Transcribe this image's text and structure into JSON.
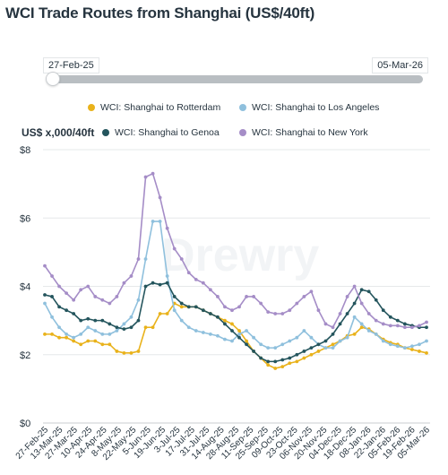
{
  "title": "WCI Trade Routes from Shanghai (US$/40ft)",
  "range": {
    "start": "27-Feb-25",
    "end": "05-Mar-26"
  },
  "unit_label": "US$ x,000/40ft",
  "watermark": "Drewry",
  "colors": {
    "rotterdam": "#e9b21b",
    "los_angeles": "#8fc0dd",
    "genoa": "#24555d",
    "new_york": "#a58dc7"
  },
  "chart_data": {
    "type": "line",
    "ylabel": "US$ x,000/40ft",
    "ylim": [
      0,
      8
    ],
    "yticks": [
      "$0",
      "$2",
      "$4",
      "$6",
      "$8"
    ],
    "grid": "horizontal",
    "legend_position": "top",
    "x": [
      "27-Feb-25",
      "06-Mar-25",
      "13-Mar-25",
      "20-Mar-25",
      "27-Mar-25",
      "03-Apr-25",
      "10-Apr-25",
      "17-Apr-25",
      "24-Apr-25",
      "01-May-25",
      "08-May-25",
      "15-May-25",
      "22-May-25",
      "29-May-25",
      "05-Jun-25",
      "12-Jun-25",
      "19-Jun-25",
      "26-Jun-25",
      "03-Jul-25",
      "10-Jul-25",
      "17-Jul-25",
      "24-Jul-25",
      "31-Jul-25",
      "07-Aug-25",
      "14-Aug-25",
      "21-Aug-25",
      "28-Aug-25",
      "04-Sep-25",
      "11-Sep-25",
      "18-Sep-25",
      "25-Sep-25",
      "02-Oct-25",
      "09-Oct-25",
      "16-Oct-25",
      "23-Oct-25",
      "30-Oct-25",
      "06-Nov-25",
      "13-Nov-25",
      "20-Nov-25",
      "27-Nov-25",
      "04-Dec-25",
      "11-Dec-25",
      "18-Dec-25",
      "25-Dec-25",
      "01-Jan-26",
      "08-Jan-26",
      "15-Jan-26",
      "22-Jan-26",
      "29-Jan-26",
      "05-Feb-26",
      "12-Feb-26",
      "19-Feb-26",
      "26-Feb-26",
      "05-Mar-26"
    ],
    "tick_labels": [
      "27-Feb-25",
      "13-Mar-25",
      "27-Mar-25",
      "10-Apr-25",
      "24-Apr-25",
      "8-May-25",
      "22-May-25",
      "5-Jun-25",
      "19-Jun-25",
      "3-Jul-25",
      "17-Jul-25",
      "31-Jul-25",
      "14-Aug-25",
      "28-Aug-25",
      "11-Sep-25",
      "25-Sep-25",
      "09-Oct-25",
      "23-Oct-25",
      "06-Nov-25",
      "20-Nov-25",
      "04-Dec-25",
      "18-Dec-25",
      "08-Jan-26",
      "22-Jan-26",
      "05-Feb-26",
      "19-Feb-26",
      "05-Mar-26"
    ],
    "series": [
      {
        "name": "WCI: Shanghai to Rotterdam",
        "color": "#e9b21b",
        "values": [
          2.6,
          2.6,
          2.5,
          2.5,
          2.4,
          2.3,
          2.4,
          2.4,
          2.3,
          2.3,
          2.1,
          2.05,
          2.05,
          2.1,
          2.8,
          2.8,
          3.2,
          3.2,
          3.5,
          3.4,
          3.4,
          3.4,
          3.3,
          3.2,
          3.1,
          3.0,
          2.9,
          2.7,
          2.4,
          2.1,
          1.9,
          1.7,
          1.6,
          1.65,
          1.75,
          1.8,
          1.9,
          2.0,
          2.1,
          2.2,
          2.3,
          2.4,
          2.55,
          2.6,
          2.8,
          2.75,
          2.6,
          2.45,
          2.35,
          2.3,
          2.2,
          2.15,
          2.1,
          2.05
        ]
      },
      {
        "name": "WCI: Shanghai to Los Angeles",
        "color": "#8fc0dd",
        "values": [
          3.5,
          3.1,
          2.8,
          2.6,
          2.5,
          2.6,
          2.8,
          2.7,
          2.6,
          2.6,
          2.7,
          2.9,
          3.1,
          3.6,
          4.8,
          5.9,
          5.9,
          4.3,
          3.3,
          3.0,
          2.8,
          2.7,
          2.65,
          2.6,
          2.55,
          2.45,
          2.4,
          2.6,
          2.7,
          2.5,
          2.3,
          2.2,
          2.2,
          2.3,
          2.4,
          2.5,
          2.7,
          2.5,
          2.3,
          2.2,
          2.2,
          2.4,
          2.5,
          3.1,
          2.9,
          2.7,
          2.6,
          2.4,
          2.3,
          2.25,
          2.2,
          2.25,
          2.3,
          2.4
        ]
      },
      {
        "name": "WCI: Shanghai to Genoa",
        "color": "#24555d",
        "values": [
          3.75,
          3.7,
          3.4,
          3.3,
          3.2,
          3.0,
          3.05,
          3.0,
          3.0,
          2.9,
          2.8,
          2.75,
          2.8,
          3.0,
          4.0,
          4.1,
          4.05,
          4.1,
          3.7,
          3.5,
          3.4,
          3.4,
          3.3,
          3.2,
          3.1,
          2.9,
          2.7,
          2.5,
          2.3,
          2.1,
          1.9,
          1.8,
          1.8,
          1.85,
          1.9,
          2.0,
          2.1,
          2.2,
          2.3,
          2.4,
          2.6,
          2.9,
          3.2,
          3.5,
          3.9,
          3.85,
          3.6,
          3.3,
          3.1,
          3.0,
          2.9,
          2.85,
          2.8,
          2.8
        ]
      },
      {
        "name": "WCI: Shanghai to New York",
        "color": "#a58dc7",
        "values": [
          4.6,
          4.3,
          4.0,
          3.8,
          3.6,
          3.9,
          4.0,
          3.7,
          3.6,
          3.5,
          3.7,
          4.1,
          4.3,
          4.8,
          7.2,
          7.3,
          6.6,
          5.7,
          5.1,
          4.8,
          4.4,
          4.2,
          4.1,
          3.9,
          3.7,
          3.4,
          3.3,
          3.4,
          3.7,
          3.7,
          3.5,
          3.25,
          3.2,
          3.2,
          3.3,
          3.5,
          3.7,
          3.85,
          3.3,
          2.9,
          2.8,
          3.2,
          3.7,
          4.0,
          3.5,
          3.2,
          3.0,
          2.9,
          2.85,
          2.85,
          2.8,
          2.8,
          2.85,
          2.95
        ]
      }
    ]
  }
}
